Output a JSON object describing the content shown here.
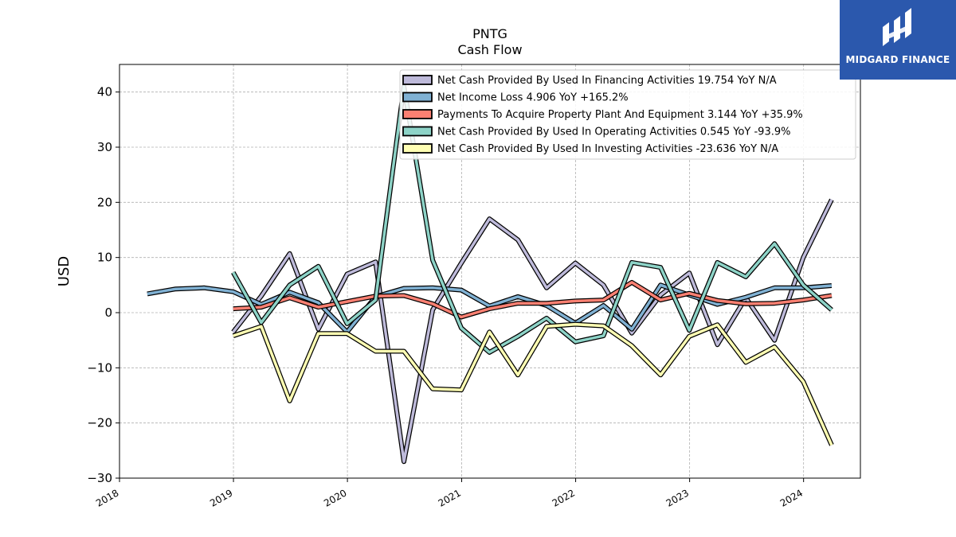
{
  "chart_data": {
    "type": "line",
    "title": "PNTG",
    "subtitle": "Cash Flow",
    "ylabel": "USD",
    "xlabel": "",
    "ylim": [
      -30,
      45
    ],
    "xlim": [
      "2018-01-01",
      "2024-07-01"
    ],
    "yticks": [
      -30,
      -20,
      -10,
      0,
      10,
      20,
      30,
      40
    ],
    "xticks": [
      "2018",
      "2019",
      "2020",
      "2021",
      "2022",
      "2023",
      "2024"
    ],
    "grid": true,
    "legend_position": "top-right",
    "series": [
      {
        "name": "Net Cash Provided By Used In Financing Activities",
        "legend": "Net Cash Provided By Used In Financing Activities  19.754 YoY N/A",
        "color": "#bebada",
        "points": [
          [
            "2018-12-31",
            -3.5
          ],
          [
            "2019-03-31",
            3.0
          ],
          [
            "2019-06-30",
            10.7
          ],
          [
            "2019-09-30",
            -3.0
          ],
          [
            "2019-12-31",
            7.0
          ],
          [
            "2020-03-31",
            9.2
          ],
          [
            "2020-06-30",
            -27.0
          ],
          [
            "2020-09-30",
            0.5
          ],
          [
            "2020-12-31",
            9.0
          ],
          [
            "2021-03-31",
            17.0
          ],
          [
            "2021-06-30",
            13.2
          ],
          [
            "2021-09-30",
            4.5
          ],
          [
            "2021-12-31",
            9.0
          ],
          [
            "2022-03-31",
            5.0
          ],
          [
            "2022-06-30",
            -3.7
          ],
          [
            "2022-09-30",
            3.2
          ],
          [
            "2022-12-31",
            7.2
          ],
          [
            "2023-03-31",
            -5.8
          ],
          [
            "2023-06-30",
            2.7
          ],
          [
            "2023-09-30",
            -5.0
          ],
          [
            "2023-12-31",
            10.0
          ],
          [
            "2024-03-31",
            20.5
          ]
        ]
      },
      {
        "name": "Net Income Loss",
        "legend": "Net Income Loss  4.906 YoY +165.2%",
        "color": "#80b1d3",
        "points": [
          [
            "2018-03-31",
            3.4
          ],
          [
            "2018-06-30",
            4.3
          ],
          [
            "2018-09-30",
            4.5
          ],
          [
            "2018-12-31",
            3.8
          ],
          [
            "2019-03-31",
            1.5
          ],
          [
            "2019-06-30",
            3.7
          ],
          [
            "2019-09-30",
            1.8
          ],
          [
            "2019-12-31",
            -3.5
          ],
          [
            "2020-03-31",
            2.9
          ],
          [
            "2020-06-30",
            4.4
          ],
          [
            "2020-09-30",
            4.5
          ],
          [
            "2020-12-31",
            4.1
          ],
          [
            "2021-03-31",
            1.2
          ],
          [
            "2021-06-30",
            2.9
          ],
          [
            "2021-09-30",
            1.3
          ],
          [
            "2021-12-31",
            -1.9
          ],
          [
            "2022-03-31",
            1.3
          ],
          [
            "2022-06-30",
            -3.0
          ],
          [
            "2022-09-30",
            5.0
          ],
          [
            "2022-12-31",
            3.2
          ],
          [
            "2023-03-31",
            1.5
          ],
          [
            "2023-06-30",
            2.8
          ],
          [
            "2023-09-30",
            4.5
          ],
          [
            "2023-12-31",
            4.5
          ],
          [
            "2024-03-31",
            4.9
          ]
        ]
      },
      {
        "name": "Payments To Acquire Property Plant And Equipment",
        "legend": "Payments To Acquire Property Plant And Equipment  3.144 YoY +35.9%",
        "color": "#fb8072",
        "points": [
          [
            "2018-12-31",
            0.7
          ],
          [
            "2019-03-31",
            1.0
          ],
          [
            "2019-06-30",
            2.7
          ],
          [
            "2019-09-30",
            1.0
          ],
          [
            "2019-12-31",
            2.0
          ],
          [
            "2020-03-31",
            3.0
          ],
          [
            "2020-06-30",
            3.1
          ],
          [
            "2020-09-30",
            1.6
          ],
          [
            "2020-12-31",
            -0.8
          ],
          [
            "2021-03-31",
            0.7
          ],
          [
            "2021-06-30",
            1.7
          ],
          [
            "2021-09-30",
            1.7
          ],
          [
            "2021-12-31",
            2.1
          ],
          [
            "2022-03-31",
            2.3
          ],
          [
            "2022-06-30",
            5.5
          ],
          [
            "2022-09-30",
            2.3
          ],
          [
            "2022-12-31",
            3.5
          ],
          [
            "2023-03-31",
            2.2
          ],
          [
            "2023-06-30",
            1.6
          ],
          [
            "2023-09-30",
            1.7
          ],
          [
            "2023-12-31",
            2.3
          ],
          [
            "2024-03-31",
            3.1
          ]
        ]
      },
      {
        "name": "Net Cash Provided By Used In Operating Activities",
        "legend": "Net Cash Provided By Used In Operating Activities  0.545 YoY -93.9%",
        "color": "#8dd3c7",
        "points": [
          [
            "2018-12-31",
            7.3
          ],
          [
            "2019-03-31",
            -1.8
          ],
          [
            "2019-06-30",
            5.0
          ],
          [
            "2019-09-30",
            8.4
          ],
          [
            "2019-12-31",
            -2.0
          ],
          [
            "2020-03-31",
            2.3
          ],
          [
            "2020-06-30",
            41.0
          ],
          [
            "2020-09-30",
            9.5
          ],
          [
            "2020-12-31",
            -2.8
          ],
          [
            "2021-03-31",
            -7.2
          ],
          [
            "2021-06-30",
            -4.3
          ],
          [
            "2021-09-30",
            -1.0
          ],
          [
            "2021-12-31",
            -5.3
          ],
          [
            "2022-03-31",
            -4.2
          ],
          [
            "2022-06-30",
            9.1
          ],
          [
            "2022-09-30",
            8.2
          ],
          [
            "2022-12-31",
            -3.2
          ],
          [
            "2023-03-31",
            9.1
          ],
          [
            "2023-06-30",
            6.5
          ],
          [
            "2023-09-30",
            12.5
          ],
          [
            "2023-12-31",
            5.0
          ],
          [
            "2024-03-31",
            0.5
          ]
        ]
      },
      {
        "name": "Net Cash Provided By Used In Investing Activities",
        "legend": "Net Cash Provided By Used In Investing Activities  -23.636 YoY N/A",
        "color": "#ffffb3",
        "points": [
          [
            "2018-12-31",
            -4.2
          ],
          [
            "2019-03-31",
            -2.5
          ],
          [
            "2019-06-30",
            -16.0
          ],
          [
            "2019-09-30",
            -3.8
          ],
          [
            "2019-12-31",
            -3.8
          ],
          [
            "2020-03-31",
            -7.0
          ],
          [
            "2020-06-30",
            -7.0
          ],
          [
            "2020-09-30",
            -13.8
          ],
          [
            "2020-12-31",
            -14.0
          ],
          [
            "2021-03-31",
            -3.5
          ],
          [
            "2021-06-30",
            -11.3
          ],
          [
            "2021-09-30",
            -2.5
          ],
          [
            "2021-12-31",
            -2.1
          ],
          [
            "2022-03-31",
            -2.4
          ],
          [
            "2022-06-30",
            -6.0
          ],
          [
            "2022-09-30",
            -11.3
          ],
          [
            "2022-12-31",
            -4.3
          ],
          [
            "2023-03-31",
            -2.2
          ],
          [
            "2023-06-30",
            -9.0
          ],
          [
            "2023-09-30",
            -6.2
          ],
          [
            "2023-12-31",
            -12.5
          ],
          [
            "2024-03-31",
            -24.0
          ]
        ]
      }
    ]
  },
  "logo": {
    "brand": "MIDGARD FINANCE",
    "icon": "midgard-logo-icon",
    "color": "#2b58ad"
  }
}
